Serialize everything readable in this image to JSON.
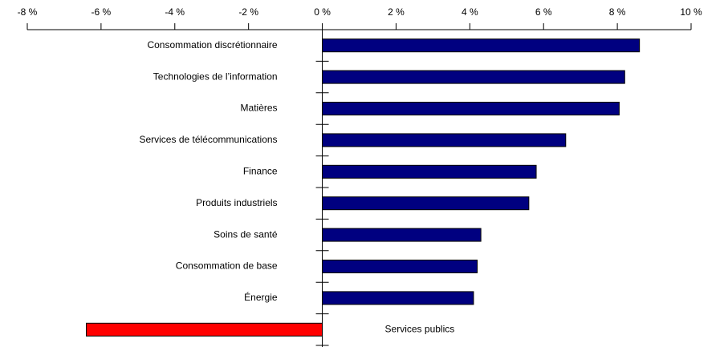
{
  "chart_data": {
    "type": "barh",
    "categories": [
      "Consommation discrétionnaire",
      "Technologies de l’information",
      "Matières",
      "Services de télécommunications",
      "Finance",
      "Produits industriels",
      "Soins de santé",
      "Consommation de base",
      "Énergie",
      "Services publics"
    ],
    "values": [
      8.6,
      8.2,
      8.05,
      6.6,
      5.8,
      5.6,
      4.3,
      4.2,
      4.1,
      -6.4
    ],
    "colors": [
      "#000080",
      "#000080",
      "#000080",
      "#000080",
      "#000080",
      "#000080",
      "#000080",
      "#000080",
      "#000080",
      "#ff0000"
    ],
    "xlim": [
      -8,
      10
    ],
    "xticks": [
      {
        "value": -8,
        "label": "-8 %"
      },
      {
        "value": -6,
        "label": "-6 %"
      },
      {
        "value": -4,
        "label": "-4 %"
      },
      {
        "value": -2,
        "label": "-2 %"
      },
      {
        "value": 0,
        "label": "0 %"
      },
      {
        "value": 2,
        "label": "2 %"
      },
      {
        "value": 4,
        "label": "4 %"
      },
      {
        "value": 6,
        "label": "6 %"
      },
      {
        "value": 8,
        "label": "8 %"
      },
      {
        "value": 10,
        "label": "10 %"
      }
    ],
    "grid": false
  }
}
